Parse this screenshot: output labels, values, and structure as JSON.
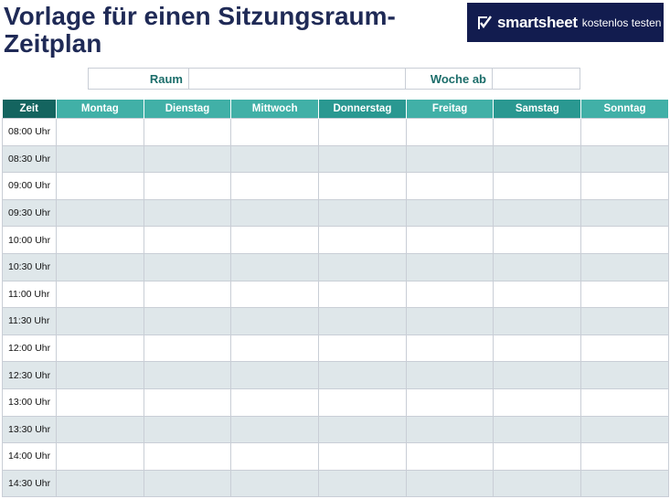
{
  "title": "Vorlage für einen Sitzungsraum-Zeitplan",
  "banner": {
    "brand": "smartsheet",
    "cta": "kostenlos testen",
    "icon": "smartsheet-check-icon",
    "background": "#121c4f"
  },
  "meta": {
    "room_label": "Raum",
    "room_value": "",
    "week_label": "Woche ab",
    "week_value": ""
  },
  "schedule": {
    "headers": [
      "Zeit",
      "Montag",
      "Dienstag",
      "Mittwoch",
      "Donnerstag",
      "Freitag",
      "Samstag",
      "Sonntag"
    ],
    "times": [
      "08:00 Uhr",
      "08:30 Uhr",
      "09:00 Uhr",
      "09:30 Uhr",
      "10:00 Uhr",
      "10:30 Uhr",
      "11:00 Uhr",
      "11:30 Uhr",
      "12:00 Uhr",
      "12:30 Uhr",
      "13:00 Uhr",
      "13:30 Uhr",
      "14:00 Uhr",
      "14:30 Uhr"
    ]
  },
  "colors": {
    "title": "#1f2a56",
    "header_dark": "#14645f",
    "header_mid": "#2a9891",
    "header_light": "#41b0a7",
    "row_alt": "#dfe7ea",
    "label_text": "#1b6d6a"
  }
}
